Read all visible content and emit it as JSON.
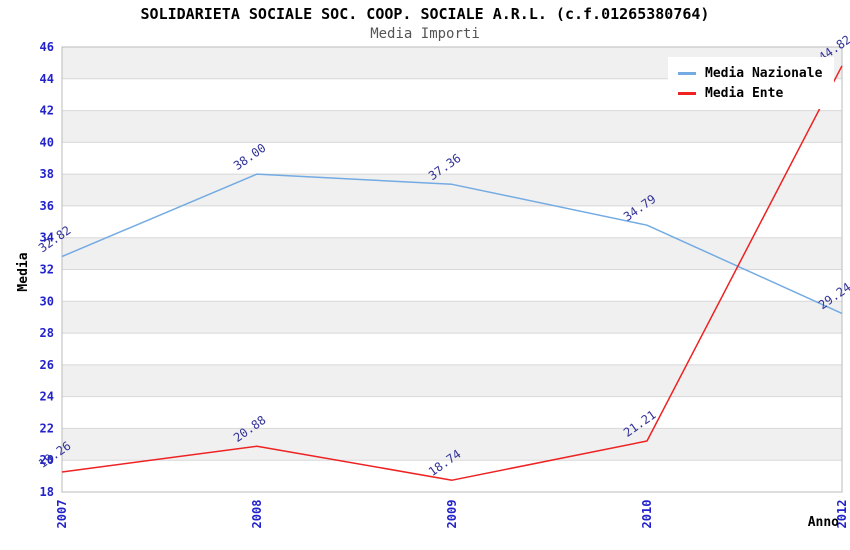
{
  "chart_data": {
    "type": "line",
    "title": "SOLIDARIETA SOCIALE SOC. COOP. SOCIALE A.R.L. (c.f.01265380764)",
    "subtitle": "Media Importi",
    "categories": [
      "2007",
      "2008",
      "2009",
      "2010",
      "2012"
    ],
    "series": [
      {
        "name": "Media Nazionale",
        "color": "#74abe3",
        "values": [
          32.82,
          38.0,
          37.36,
          34.79,
          29.24
        ]
      },
      {
        "name": "Media Ente",
        "color": "#ee2222",
        "values": [
          19.26,
          20.88,
          18.74,
          21.21,
          44.82
        ]
      }
    ],
    "xlabel": "Anno",
    "ylabel": "Media",
    "ylim": [
      18,
      46
    ],
    "y_tick_step": 2,
    "grid": "alternating-horizontal-bands",
    "legend_position": "top-right",
    "colors": {
      "tick_label": "#2222cc",
      "data_label": "#333399",
      "axis_title": "#000000",
      "band_gray": "#f0f0f0",
      "band_white": "#ffffff",
      "grid_line": "#d8d8d8",
      "plot_border": "#bbbbbb",
      "subtitle": "#555555"
    }
  }
}
